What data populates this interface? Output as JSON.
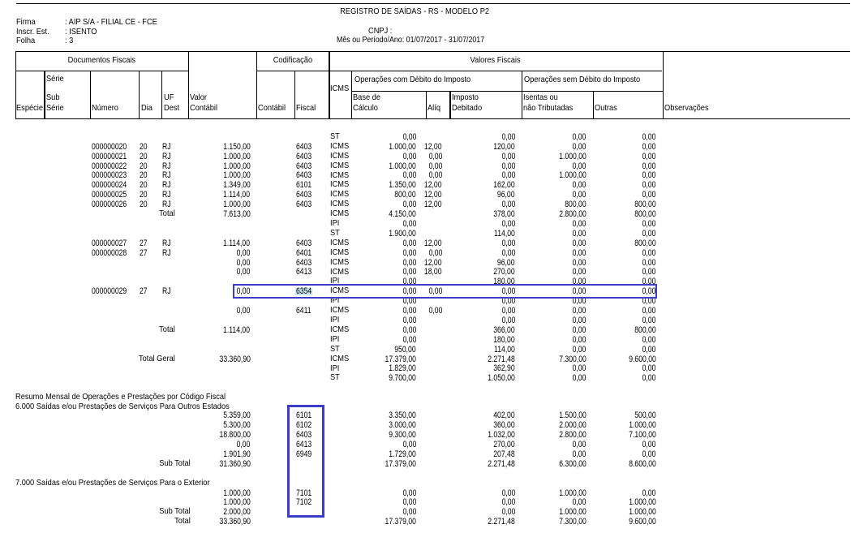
{
  "page": {
    "background": "#ffffff",
    "text_color": "#000000"
  },
  "header": {
    "title": "REGISTRO DE SAÍDAS - RS - MODELO P2",
    "meta": [
      {
        "label": "Firma",
        "value": ": AIP S/A - FILIAL CE - FCE"
      },
      {
        "label": "Inscr. Est.",
        "value": ": ISENTO"
      },
      {
        "label": "Folha",
        "value": ": 3"
      }
    ],
    "cnpj": "CNPJ :",
    "period": "Mês ou Período/Ano: 01/07/2017 - 31/07/2017"
  },
  "table_header": {
    "group_documentos": "Documentos Fiscais",
    "group_codificacao": "Codificação",
    "group_valores": "Valores Fiscais",
    "group_com_debito": "Operações com Débito do Imposto",
    "group_sem_debito": "Operações sem Débito do Imposto",
    "col_especie": "Espécie",
    "col_serie": "Série",
    "col_sub_serie_1": "Sub",
    "col_sub_serie_2": "Série",
    "col_numero": "Número",
    "col_dia": "Dia",
    "col_uf_1": "UF",
    "col_uf_2": "Dest",
    "col_valor_1": "Valor",
    "col_valor_2": "Contábil",
    "col_contabil": "Contábil",
    "col_fiscal": "Fiscal",
    "col_icms": "ICMS",
    "col_base_1": "Base de",
    "col_base_2": "Cálculo",
    "col_aliq": "Alíq",
    "col_imposto_1": "Imposto",
    "col_imposto_2": "Debitado",
    "col_isentas_1": "Isentas ou",
    "col_isentas_2": "não Tributadas",
    "col_outras": "Outras",
    "col_observacoes": "Observações"
  },
  "slot_names": [
    "numero",
    "dia",
    "uf",
    "row_label",
    "valor_contabil",
    "cod_fiscal",
    "icms",
    "base_calculo",
    "aliq",
    "imposto_debitado",
    "isentas",
    "outras"
  ],
  "rows": [
    [
      "",
      "",
      "",
      "",
      "",
      "",
      "ST",
      "0,00",
      "",
      "0,00",
      "0,00",
      "0,00"
    ],
    [
      "000000020",
      "20",
      "RJ",
      "",
      "1.150,00",
      "6403",
      "ICMS",
      "1.000,00",
      "12,00",
      "120,00",
      "0,00",
      "0,00"
    ],
    [
      "000000021",
      "20",
      "RJ",
      "",
      "1.000,00",
      "6403",
      "ICMS",
      "0,00",
      "0,00",
      "0,00",
      "1.000,00",
      "0,00"
    ],
    [
      "000000022",
      "20",
      "RJ",
      "",
      "1.000,00",
      "6403",
      "ICMS",
      "1.000,00",
      "0,00",
      "0,00",
      "0,00",
      "0,00"
    ],
    [
      "000000023",
      "20",
      "RJ",
      "",
      "1.000,00",
      "6403",
      "ICMS",
      "0,00",
      "0,00",
      "0,00",
      "1.000,00",
      "0,00"
    ],
    [
      "000000024",
      "20",
      "RJ",
      "",
      "1.349,00",
      "6101",
      "ICMS",
      "1.350,00",
      "12,00",
      "162,00",
      "0,00",
      "0,00"
    ],
    [
      "000000025",
      "20",
      "RJ",
      "",
      "1.114,00",
      "6403",
      "ICMS",
      "800,00",
      "12,00",
      "96,00",
      "0,00",
      "0,00"
    ],
    [
      "000000026",
      "20",
      "RJ",
      "",
      "1.000,00",
      "6403",
      "ICMS",
      "0,00",
      "12,00",
      "0,00",
      "800,00",
      "800,00"
    ],
    [
      "",
      "",
      "",
      "Total",
      "7.613,00",
      "",
      "ICMS",
      "4.150,00",
      "",
      "378,00",
      "2.800,00",
      "800,00"
    ],
    [
      "",
      "",
      "",
      "",
      "",
      "",
      "IPI",
      "0,00",
      "",
      "0,00",
      "0,00",
      "0,00"
    ],
    [
      "",
      "",
      "",
      "",
      "",
      "",
      "ST",
      "1.900,00",
      "",
      "114,00",
      "0,00",
      "0,00"
    ],
    [
      "000000027",
      "27",
      "RJ",
      "",
      "1.114,00",
      "6403",
      "ICMS",
      "0,00",
      "12,00",
      "0,00",
      "0,00",
      "800,00"
    ],
    [
      "000000028",
      "27",
      "RJ",
      "",
      "0,00",
      "6401",
      "ICMS",
      "0,00",
      "0,00",
      "0,00",
      "0,00",
      "0,00"
    ],
    [
      "",
      "",
      "",
      "",
      "0,00",
      "6403",
      "ICMS",
      "0,00",
      "12,00",
      "96,00",
      "0,00",
      "0,00"
    ],
    [
      "",
      "",
      "",
      "",
      "0,00",
      "6413",
      "ICMS",
      "0,00",
      "18,00",
      "270,00",
      "0,00",
      "0,00"
    ],
    [
      "",
      "",
      "",
      "",
      "",
      "",
      "IPI",
      "0,00",
      "",
      "180,00",
      "0,00",
      "0,00"
    ],
    [
      "000000029",
      "27",
      "RJ",
      "",
      "0,00",
      "6354",
      "ICMS",
      "0,00",
      "0,00",
      "0,00",
      "0,00",
      "0,00"
    ],
    [
      "",
      "",
      "",
      "",
      "",
      "",
      "IPI",
      "0,00",
      "",
      "0,00",
      "0,00",
      "0,00"
    ],
    [
      "",
      "",
      "",
      "",
      "0,00",
      "6411",
      "ICMS",
      "0,00",
      "0,00",
      "0,00",
      "0,00",
      "0,00"
    ],
    [
      "",
      "",
      "",
      "",
      "",
      "",
      "IPI",
      "0,00",
      "",
      "0,00",
      "0,00",
      "0,00"
    ],
    [
      "",
      "",
      "",
      "Total",
      "1.114,00",
      "",
      "ICMS",
      "0,00",
      "",
      "366,00",
      "0,00",
      "800,00"
    ],
    [
      "",
      "",
      "",
      "",
      "",
      "",
      "IPI",
      "0,00",
      "",
      "180,00",
      "0,00",
      "0,00"
    ],
    [
      "",
      "",
      "",
      "",
      "",
      "",
      "ST",
      "950,00",
      "",
      "114,00",
      "0,00",
      "0,00"
    ],
    [
      "",
      "",
      "",
      "Total Geral",
      "33.360,90",
      "",
      "ICMS",
      "17.379,00",
      "",
      "2.271,48",
      "7.300,00",
      "9.600,00"
    ],
    [
      "",
      "",
      "",
      "",
      "",
      "",
      "IPI",
      "1.829,00",
      "",
      "362,90",
      "0,00",
      "0,00"
    ],
    [
      "",
      "",
      "",
      "",
      "",
      "",
      "ST",
      "9.700,00",
      "",
      "1.050,00",
      "0,00",
      "0,00"
    ]
  ],
  "summary": {
    "title": "Resumo Mensal de Operações e Prestações por Código Fiscal",
    "sections": [
      {
        "heading": "6.000 Saídas e/ou Prestações de Serviços Para Outros Estados",
        "rows": [
          [
            "",
            "",
            "",
            "",
            "5.359,00",
            "6101",
            "",
            "3.350,00",
            "",
            "402,00",
            "1.500,00",
            "500,00"
          ],
          [
            "",
            "",
            "",
            "",
            "5.300,00",
            "6102",
            "",
            "3.000,00",
            "",
            "360,00",
            "2.000,00",
            "1.000,00"
          ],
          [
            "",
            "",
            "",
            "",
            "18.800,00",
            "6403",
            "",
            "9.300,00",
            "",
            "1.032,00",
            "2.800,00",
            "7.100,00"
          ],
          [
            "",
            "",
            "",
            "",
            "0,00",
            "6413",
            "",
            "0,00",
            "",
            "270,00",
            "0,00",
            "0,00"
          ],
          [
            "",
            "",
            "",
            "",
            "1.901,90",
            "6949",
            "",
            "1.729,00",
            "",
            "207,48",
            "0,00",
            "0,00"
          ],
          [
            "",
            "",
            "",
            "Sub Total",
            "31.360,90",
            "",
            "",
            "17.379,00",
            "",
            "2.271,48",
            "6.300,00",
            "8.600,00"
          ]
        ]
      },
      {
        "heading": "7.000 Saídas e/ou Prestações de Serviços Para o Exterior",
        "rows": [
          [
            "",
            "",
            "",
            "",
            "1.000,00",
            "7101",
            "",
            "0,00",
            "",
            "0,00",
            "1.000,00",
            "0,00"
          ],
          [
            "",
            "",
            "",
            "",
            "1.000,00",
            "7102",
            "",
            "0,00",
            "",
            "0,00",
            "0,00",
            "1.000,00"
          ],
          [
            "",
            "",
            "",
            "Sub Total",
            "2.000,00",
            "",
            "",
            "0,00",
            "",
            "0,00",
            "1.000,00",
            "1.000,00"
          ],
          [
            "",
            "",
            "",
            "Total",
            "33.360,90",
            "",
            "",
            "17.379,00",
            "",
            "2.271,48",
            "7.300,00",
            "9.600,00"
          ]
        ]
      }
    ]
  },
  "selection": {
    "selected_row_index": 16,
    "selected_code": "6354",
    "box_border_color": "#3d3dc9",
    "code_highlight_color": "#c9e6f5",
    "line_color": "#000000"
  }
}
